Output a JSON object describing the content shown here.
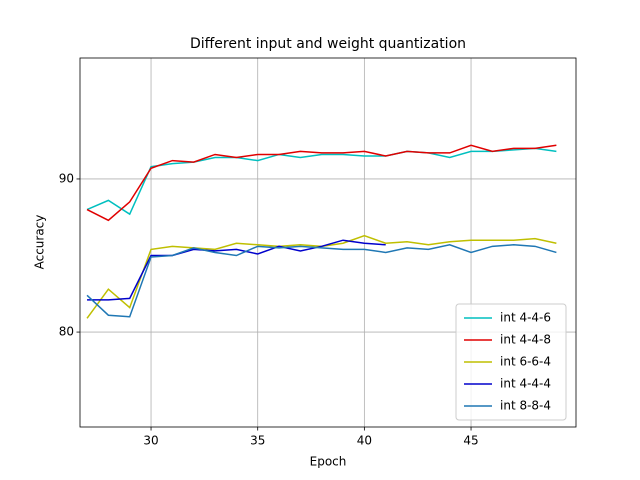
{
  "chart_data": {
    "type": "line",
    "title": "Different input and weight quantization",
    "xlabel": "Epoch",
    "ylabel": "Accuracy",
    "x": [
      27,
      28,
      29,
      30,
      31,
      32,
      33,
      34,
      35,
      36,
      37,
      38,
      39,
      40,
      41,
      42,
      43,
      44,
      45,
      46,
      47,
      48,
      49
    ],
    "series": [
      {
        "name": "int 4-4-6",
        "color": "#00bfbf",
        "values": [
          88.0,
          88.6,
          87.7,
          90.8,
          91.0,
          91.1,
          91.4,
          91.4,
          91.2,
          91.6,
          91.4,
          91.6,
          91.6,
          91.5,
          91.5,
          91.8,
          91.7,
          91.4,
          91.8,
          91.8,
          91.9,
          92.0,
          91.8
        ]
      },
      {
        "name": "int 4-4-8",
        "color": "#e00000",
        "values": [
          88.0,
          87.3,
          88.5,
          90.7,
          91.2,
          91.1,
          91.6,
          91.4,
          91.6,
          91.6,
          91.8,
          91.7,
          91.7,
          91.8,
          91.5,
          91.8,
          91.7,
          91.7,
          92.2,
          91.8,
          92.0,
          92.0,
          92.2
        ]
      },
      {
        "name": "int 6-6-4",
        "color": "#bfbf00",
        "values": [
          80.9,
          82.8,
          81.6,
          85.4,
          85.6,
          85.5,
          85.4,
          85.8,
          85.7,
          85.6,
          85.7,
          85.6,
          85.8,
          86.3,
          85.8,
          85.9,
          85.7,
          85.9,
          86.0,
          86.0,
          86.0,
          86.1,
          85.8
        ]
      },
      {
        "name": "int 4-4-4",
        "color": "#0000cc",
        "values": [
          82.1,
          82.1,
          82.2,
          85.0,
          85.0,
          85.4,
          85.3,
          85.4,
          85.1,
          85.6,
          85.3,
          85.6,
          86.0,
          85.8,
          85.7,
          null,
          null,
          null,
          null,
          null,
          null,
          null,
          null
        ]
      },
      {
        "name": "int 8-8-4",
        "color": "#1f77b4",
        "values": [
          82.4,
          81.1,
          81.0,
          84.9,
          85.0,
          85.5,
          85.2,
          85.0,
          85.6,
          85.5,
          85.6,
          85.5,
          85.4,
          85.4,
          85.2,
          85.5,
          85.4,
          85.7,
          85.2,
          85.6,
          85.7,
          85.6,
          85.2
        ]
      }
    ],
    "xlim": [
      26.67,
      49.92
    ],
    "ylim": [
      73.8,
      97.9
    ],
    "xticks": [
      30,
      35,
      40,
      45
    ],
    "yticks": [
      80,
      90
    ],
    "grid": true,
    "legend": "lower right"
  }
}
